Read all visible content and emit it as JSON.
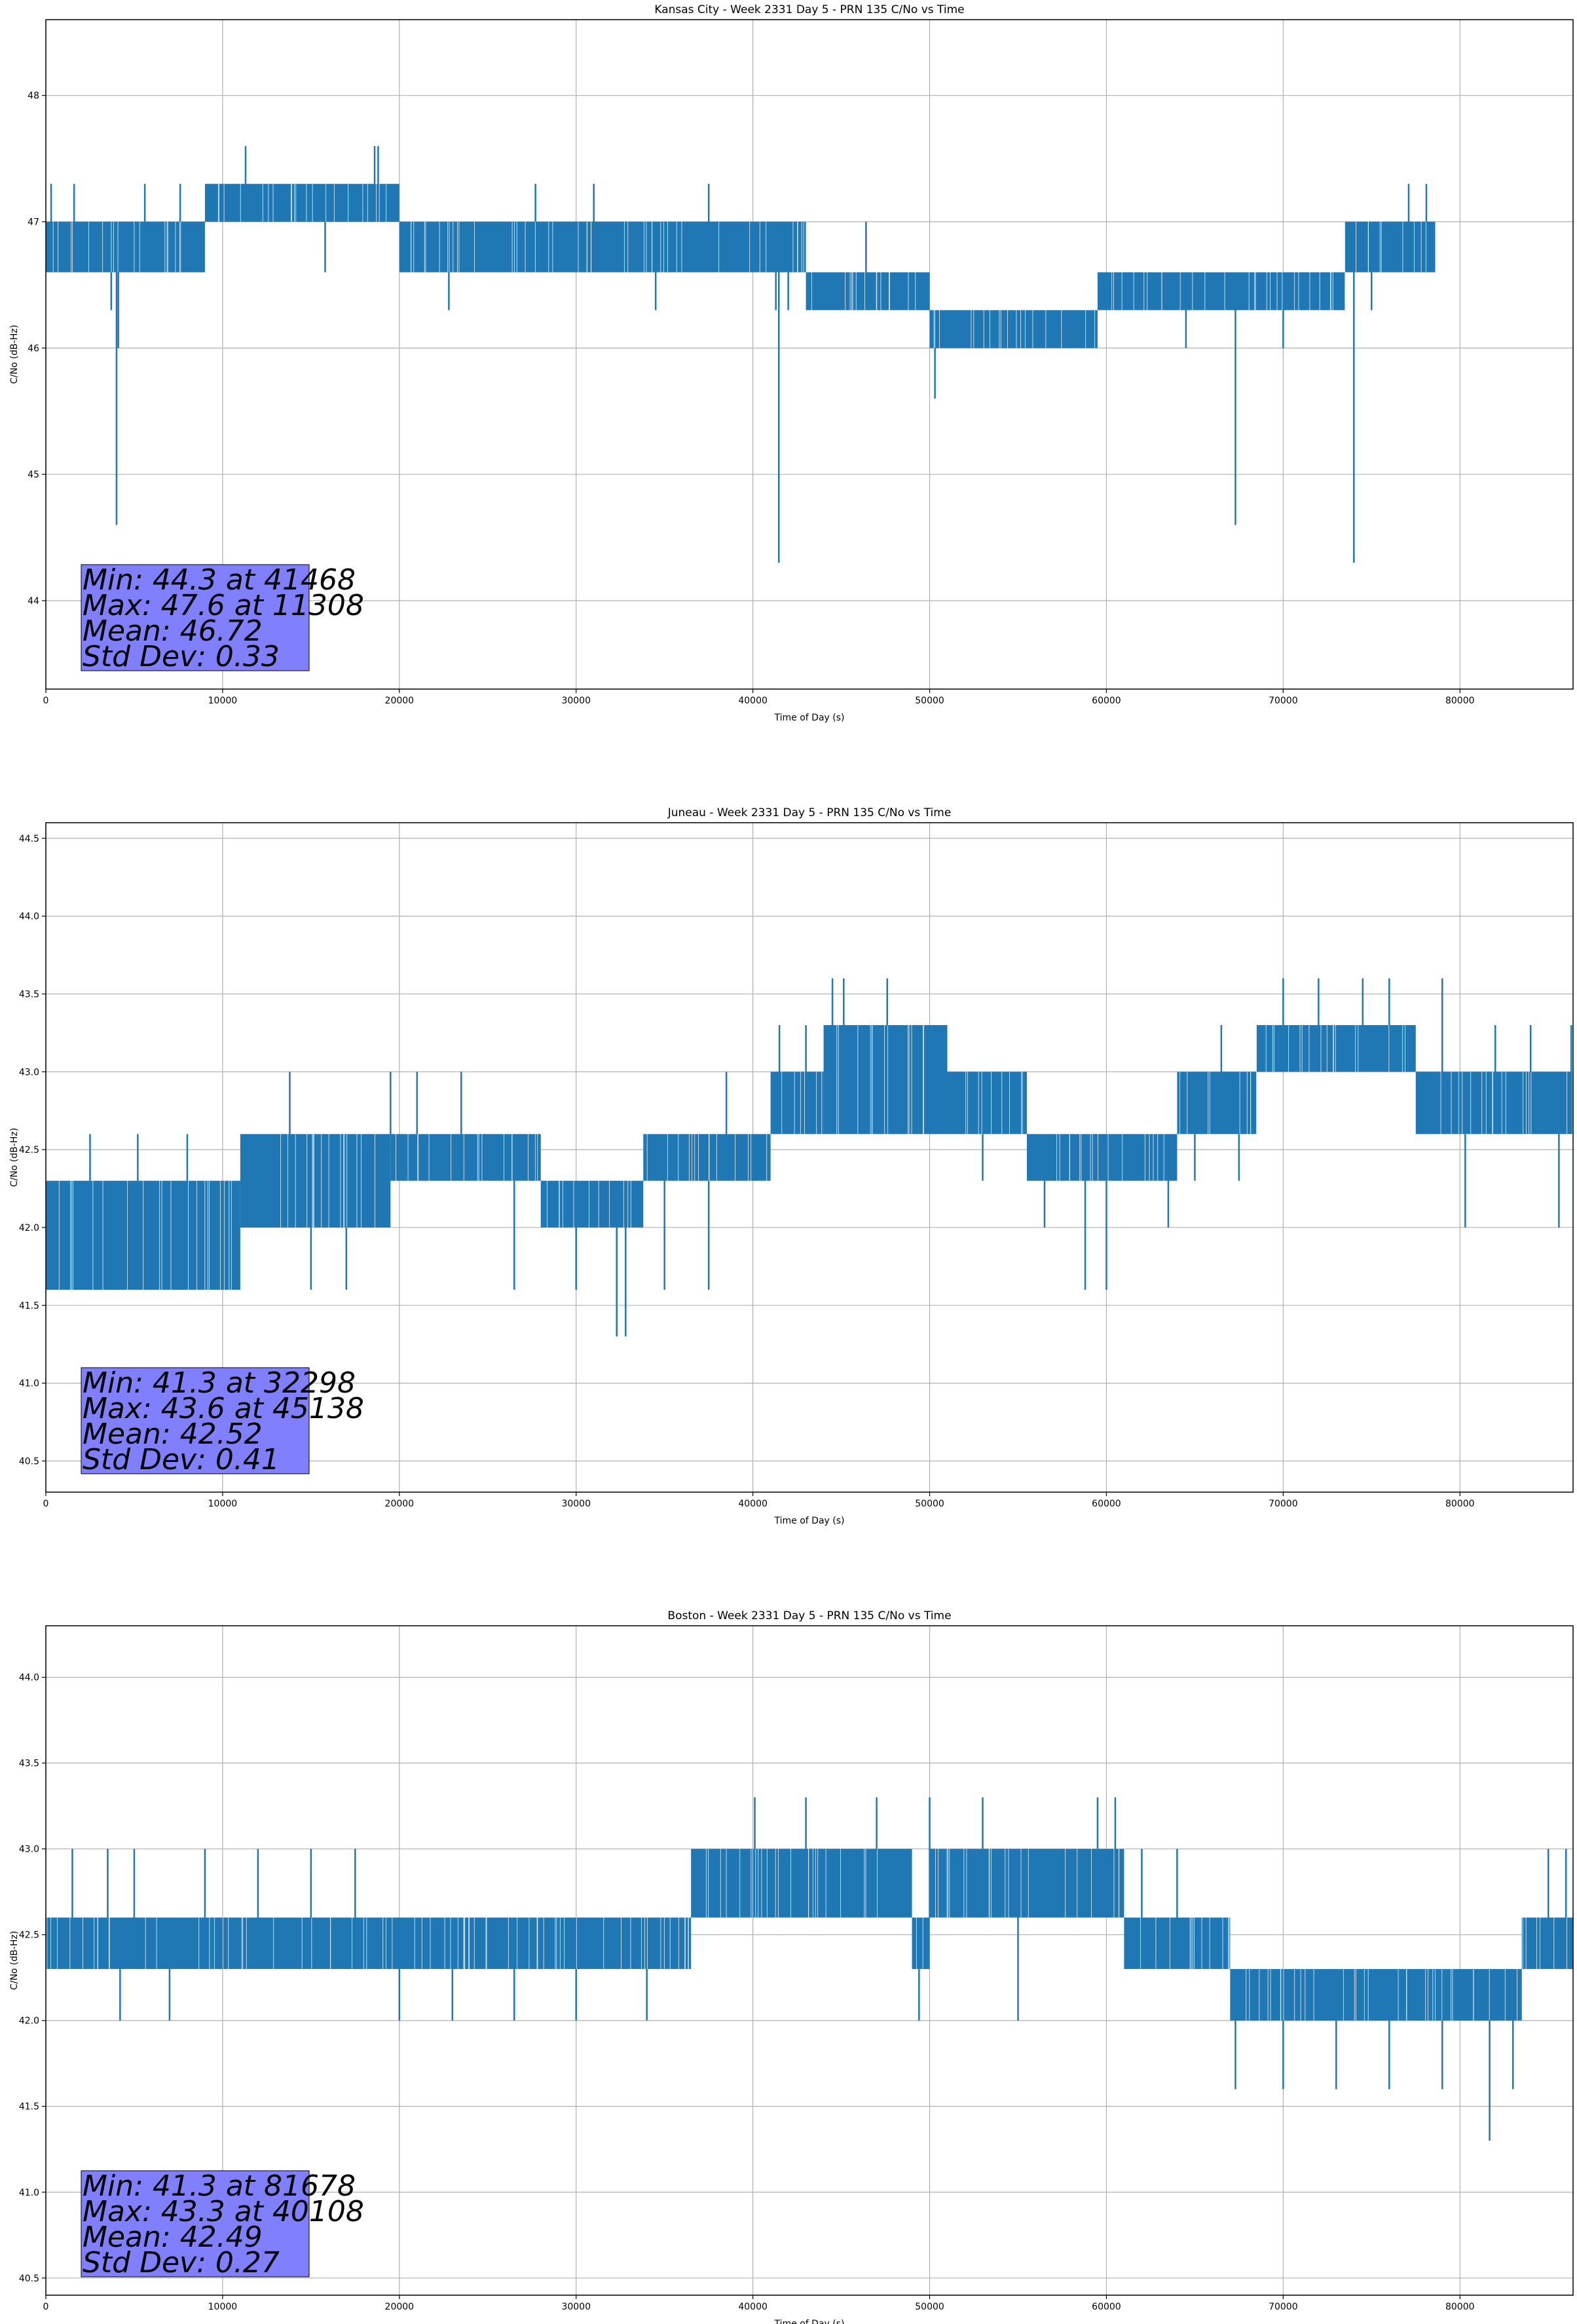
{
  "chart_data": [
    {
      "type": "line",
      "title": "Kansas City - Week 2331 Day 5 - PRN 135 C/No vs Time",
      "xlabel": "Time of Day (s)",
      "ylabel": "C/No (dB-Hz)",
      "xlim": [
        0,
        86400
      ],
      "ylim": [
        43.3,
        48.6
      ],
      "xticks": [
        0,
        10000,
        20000,
        30000,
        40000,
        50000,
        60000,
        70000,
        80000
      ],
      "yticks": [
        44,
        45,
        46,
        47,
        48
      ],
      "grid": true,
      "series_color": "#1f77b4",
      "stats_box_color": "#8080ff",
      "stats": [
        "Min: 44.3 at 41468",
        "Max: 47.6 at 11308",
        "Mean: 46.72",
        "Std Dev: 0.33"
      ],
      "series": [
        {
          "segments": [
            {
              "x": [
                0,
                2000
              ],
              "lo": 46.6,
              "hi": 47.0
            },
            {
              "x": [
                2000,
                9000
              ],
              "lo": 46.6,
              "hi": 47.0
            },
            {
              "x": [
                9000,
                20000
              ],
              "lo": 47.0,
              "hi": 47.3
            },
            {
              "x": [
                20000,
                43000
              ],
              "lo": 46.6,
              "hi": 47.0
            },
            {
              "x": [
                43000,
                47000
              ],
              "lo": 46.3,
              "hi": 46.6
            },
            {
              "x": [
                47000,
                50000
              ],
              "lo": 46.3,
              "hi": 46.6
            },
            {
              "x": [
                50000,
                59500
              ],
              "lo": 46.0,
              "hi": 46.3
            },
            {
              "x": [
                59500,
                73500
              ],
              "lo": 46.3,
              "hi": 46.6
            },
            {
              "x": [
                73500,
                78600
              ],
              "lo": 46.6,
              "hi": 47.0
            }
          ],
          "spikes": [
            [
              300,
              47.3
            ],
            [
              1600,
              47.3
            ],
            [
              3700,
              46.3
            ],
            [
              4000,
              44.6
            ],
            [
              4100,
              46.0
            ],
            [
              5600,
              47.3
            ],
            [
              7600,
              47.3
            ],
            [
              11300,
              47.6
            ],
            [
              18600,
              47.6
            ],
            [
              18800,
              47.6
            ],
            [
              15800,
              46.6
            ],
            [
              22800,
              46.3
            ],
            [
              27700,
              47.3
            ],
            [
              31000,
              47.3
            ],
            [
              34500,
              46.3
            ],
            [
              37500,
              47.3
            ],
            [
              41300,
              46.3
            ],
            [
              41468,
              44.3
            ],
            [
              42000,
              46.3
            ],
            [
              46400,
              47.0
            ],
            [
              50300,
              45.6
            ],
            [
              58500,
              46.0
            ],
            [
              64500,
              46.0
            ],
            [
              67300,
              44.6
            ],
            [
              70000,
              46.0
            ],
            [
              74000,
              44.3
            ],
            [
              75000,
              46.3
            ],
            [
              77100,
              47.3
            ],
            [
              78100,
              47.3
            ]
          ]
        }
      ]
    },
    {
      "type": "line",
      "title": "Juneau - Week 2331 Day 5 - PRN 135 C/No vs Time",
      "xlabel": "Time of Day (s)",
      "ylabel": "C/No (dB-Hz)",
      "xlim": [
        0,
        86400
      ],
      "ylim": [
        40.3,
        44.6
      ],
      "xticks": [
        0,
        10000,
        20000,
        30000,
        40000,
        50000,
        60000,
        70000,
        80000
      ],
      "yticks": [
        40.5,
        41.0,
        41.5,
        42.0,
        42.5,
        43.0,
        43.5,
        44.0,
        44.5
      ],
      "grid": true,
      "series_color": "#1f77b4",
      "stats_box_color": "#8080ff",
      "stats": [
        "Min: 41.3 at 32298",
        "Max: 43.6 at 45138",
        "Mean: 42.52",
        "Std Dev: 0.41"
      ],
      "series": [
        {
          "segments": [
            {
              "x": [
                0,
                1000
              ],
              "lo": 41.6,
              "hi": 42.3
            },
            {
              "x": [
                1000,
                11000
              ],
              "lo": 41.6,
              "hi": 42.3
            },
            {
              "x": [
                11000,
                19500
              ],
              "lo": 42.0,
              "hi": 42.6
            },
            {
              "x": [
                19500,
                28000
              ],
              "lo": 42.3,
              "hi": 42.6
            },
            {
              "x": [
                28000,
                33800
              ],
              "lo": 42.0,
              "hi": 42.3
            },
            {
              "x": [
                33800,
                41000
              ],
              "lo": 42.3,
              "hi": 42.6
            },
            {
              "x": [
                41000,
                44000
              ],
              "lo": 42.6,
              "hi": 43.0
            },
            {
              "x": [
                44000,
                51000
              ],
              "lo": 42.6,
              "hi": 43.3
            },
            {
              "x": [
                51000,
                55500
              ],
              "lo": 42.6,
              "hi": 43.0
            },
            {
              "x": [
                55500,
                64000
              ],
              "lo": 42.3,
              "hi": 42.6
            },
            {
              "x": [
                64000,
                68500
              ],
              "lo": 42.6,
              "hi": 43.0
            },
            {
              "x": [
                68500,
                77500
              ],
              "lo": 43.0,
              "hi": 43.3
            },
            {
              "x": [
                77500,
                86400
              ],
              "lo": 42.6,
              "hi": 43.0
            }
          ],
          "spikes": [
            [
              2500,
              42.6
            ],
            [
              5200,
              42.6
            ],
            [
              8000,
              42.6
            ],
            [
              13800,
              43.0
            ],
            [
              15000,
              41.6
            ],
            [
              17000,
              41.6
            ],
            [
              19500,
              43.0
            ],
            [
              21000,
              43.0
            ],
            [
              23500,
              43.0
            ],
            [
              26500,
              41.6
            ],
            [
              30000,
              41.6
            ],
            [
              32298,
              41.3
            ],
            [
              32800,
              41.3
            ],
            [
              35000,
              41.6
            ],
            [
              37500,
              41.6
            ],
            [
              38500,
              43.0
            ],
            [
              41500,
              43.3
            ],
            [
              43000,
              43.3
            ],
            [
              44500,
              43.6
            ],
            [
              45138,
              43.6
            ],
            [
              47600,
              43.6
            ],
            [
              48000,
              43.3
            ],
            [
              53000,
              42.3
            ],
            [
              56500,
              42.0
            ],
            [
              58800,
              41.6
            ],
            [
              60000,
              41.6
            ],
            [
              63500,
              42.0
            ],
            [
              65000,
              42.3
            ],
            [
              66500,
              43.3
            ],
            [
              67500,
              42.3
            ],
            [
              70000,
              43.6
            ],
            [
              72000,
              43.6
            ],
            [
              74500,
              43.6
            ],
            [
              76000,
              43.6
            ],
            [
              79000,
              43.6
            ],
            [
              80300,
              42.0
            ],
            [
              82000,
              43.3
            ],
            [
              84000,
              43.3
            ],
            [
              85600,
              42.0
            ],
            [
              86300,
              43.3
            ]
          ]
        }
      ]
    },
    {
      "type": "line",
      "title": "Boston - Week 2331 Day 5 - PRN 135 C/No vs Time",
      "xlabel": "Time of Day (s)",
      "ylabel": "C/No (dB-Hz)",
      "xlim": [
        0,
        86400
      ],
      "ylim": [
        40.4,
        44.3
      ],
      "xticks": [
        0,
        10000,
        20000,
        30000,
        40000,
        50000,
        60000,
        70000,
        80000
      ],
      "yticks": [
        40.5,
        41.0,
        41.5,
        42.0,
        42.5,
        43.0,
        43.5,
        44.0
      ],
      "grid": true,
      "series_color": "#1f77b4",
      "stats_box_color": "#8080ff",
      "stats": [
        "Min: 41.3 at 81678",
        "Max: 43.3 at 40108",
        "Mean: 42.49",
        "Std Dev: 0.27"
      ],
      "series": [
        {
          "segments": [
            {
              "x": [
                0,
                36500
              ],
              "lo": 42.3,
              "hi": 42.6
            },
            {
              "x": [
                36500,
                49000
              ],
              "lo": 42.6,
              "hi": 43.0
            },
            {
              "x": [
                49000,
                50000
              ],
              "lo": 42.3,
              "hi": 42.6
            },
            {
              "x": [
                50000,
                61000
              ],
              "lo": 42.6,
              "hi": 43.0
            },
            {
              "x": [
                61000,
                67000
              ],
              "lo": 42.3,
              "hi": 42.6
            },
            {
              "x": [
                67000,
                83500
              ],
              "lo": 42.0,
              "hi": 42.3
            },
            {
              "x": [
                83500,
                86400
              ],
              "lo": 42.3,
              "hi": 42.6
            }
          ],
          "spikes": [
            [
              1500,
              43.0
            ],
            [
              3500,
              43.0
            ],
            [
              4200,
              42.0
            ],
            [
              5000,
              43.0
            ],
            [
              7000,
              42.0
            ],
            [
              9000,
              43.0
            ],
            [
              12000,
              43.0
            ],
            [
              15000,
              43.0
            ],
            [
              17500,
              43.0
            ],
            [
              20000,
              42.0
            ],
            [
              23000,
              42.0
            ],
            [
              26500,
              42.0
            ],
            [
              30000,
              42.0
            ],
            [
              34000,
              42.0
            ],
            [
              37000,
              43.0
            ],
            [
              40108,
              43.3
            ],
            [
              43000,
              43.3
            ],
            [
              47000,
              43.3
            ],
            [
              49400,
              42.0
            ],
            [
              50000,
              43.3
            ],
            [
              53000,
              43.3
            ],
            [
              55000,
              42.0
            ],
            [
              59500,
              43.3
            ],
            [
              60500,
              43.3
            ],
            [
              62000,
              43.0
            ],
            [
              64000,
              43.0
            ],
            [
              67300,
              41.6
            ],
            [
              70000,
              41.6
            ],
            [
              73000,
              41.6
            ],
            [
              76000,
              41.6
            ],
            [
              79000,
              41.6
            ],
            [
              81678,
              41.3
            ],
            [
              83000,
              41.6
            ],
            [
              85000,
              43.0
            ],
            [
              86000,
              43.0
            ]
          ]
        }
      ]
    }
  ]
}
